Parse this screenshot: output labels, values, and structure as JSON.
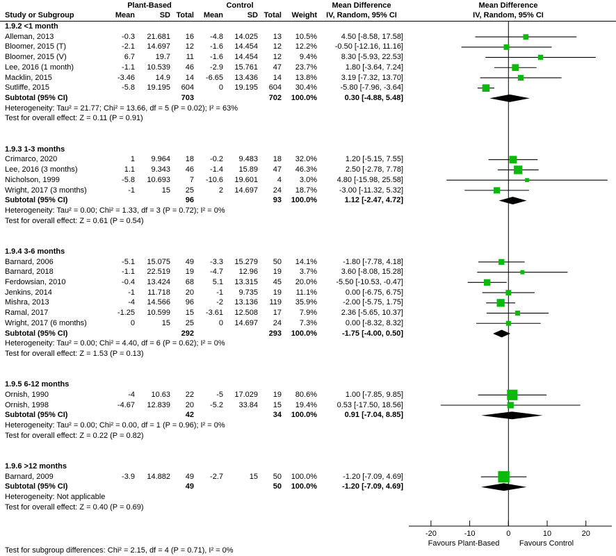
{
  "header": {
    "group1_label": "Plant-Based",
    "group2_label": "Control",
    "md_col_title": "Mean Difference",
    "md_col_sub": "IV, Random, 95% CI",
    "md_plot_title": "Mean Difference",
    "md_plot_sub": "IV, Random, 95% CI",
    "study_col": "Study or Subgroup",
    "mean1": "Mean",
    "sd1": "SD",
    "total1": "Total",
    "mean2": "Mean",
    "sd2": "SD",
    "total2": "Total",
    "weight": "Weight"
  },
  "axis": {
    "ticks": [
      -20,
      -10,
      0,
      10,
      20
    ],
    "favours_left": "Favours Plant-Based",
    "favours_right": "Favours Control"
  },
  "footer": "Test for subgroup differences: Chi² = 2.15, df = 4 (P = 0.71), I² = 0%",
  "colors": {
    "marker": "#0CB80C",
    "diamond": "#000000",
    "line": "#000000"
  },
  "chart_data": {
    "type": "forest",
    "effect_measure": "Mean Difference, IV, Random, 95% CI",
    "xlim": [
      -25,
      25
    ],
    "groups": [
      {
        "name": "1.9.2 <1 month",
        "studies": [
          {
            "label": "Alleman, 2013",
            "mean1": "-0.3",
            "sd1": "21.681",
            "n1": "16",
            "mean2": "-4.8",
            "sd2": "14.025",
            "n2": "13",
            "weight": "10.5%",
            "weight_val": 10.5,
            "ci_text": "4.50 [-8.58, 17.58]",
            "est": 4.5,
            "lo": -8.58,
            "hi": 17.58
          },
          {
            "label": "Bloomer, 2015 (T)",
            "mean1": "-2.1",
            "sd1": "14.697",
            "n1": "12",
            "mean2": "-1.6",
            "sd2": "14.454",
            "n2": "12",
            "weight": "12.2%",
            "weight_val": 12.2,
            "ci_text": "-0.50 [-12.16, 11.16]",
            "est": -0.5,
            "lo": -12.16,
            "hi": 11.16
          },
          {
            "label": "Bloomer, 2015 (V)",
            "mean1": "6.7",
            "sd1": "19.7",
            "n1": "11",
            "mean2": "-1.6",
            "sd2": "14.454",
            "n2": "12",
            "weight": "9.4%",
            "weight_val": 9.4,
            "ci_text": "8.30 [-5.93, 22.53]",
            "est": 8.3,
            "lo": -5.93,
            "hi": 22.53
          },
          {
            "label": "Lee, 2016 (1 month)",
            "mean1": "-1.1",
            "sd1": "10.539",
            "n1": "46",
            "mean2": "-2.9",
            "sd2": "15.761",
            "n2": "47",
            "weight": "23.7%",
            "weight_val": 23.7,
            "ci_text": "1.80 [-3.64, 7.24]",
            "est": 1.8,
            "lo": -3.64,
            "hi": 7.24
          },
          {
            "label": "Macklin, 2015",
            "mean1": "-3.46",
            "sd1": "14.9",
            "n1": "14",
            "mean2": "-6.65",
            "sd2": "13.436",
            "n2": "14",
            "weight": "13.8%",
            "weight_val": 13.8,
            "ci_text": "3.19 [-7.32, 13.70]",
            "est": 3.19,
            "lo": -7.32,
            "hi": 13.7
          },
          {
            "label": "Sutliffe, 2015",
            "mean1": "-5.8",
            "sd1": "19.195",
            "n1": "604",
            "mean2": "0",
            "sd2": "19.195",
            "n2": "604",
            "weight": "30.4%",
            "weight_val": 30.4,
            "ci_text": "-5.80 [-7.96, -3.64]",
            "est": -5.8,
            "lo": -7.96,
            "hi": -3.64
          }
        ],
        "subtotal": {
          "label": "Subtotal (95% CI)",
          "n1": "703",
          "n2": "702",
          "weight": "100.0%",
          "ci_text": "0.30 [-4.88, 5.48]",
          "est": 0.3,
          "lo": -4.88,
          "hi": 5.48
        },
        "heterogeneity": "Heterogeneity: Tau² = 21.77; Chi² = 13.66, df = 5 (P = 0.02); I² = 63%",
        "test": "Test for overall effect: Z = 0.11 (P = 0.91)"
      },
      {
        "name": "1.9.3 1-3 months",
        "studies": [
          {
            "label": "Crimarco, 2020",
            "mean1": "1",
            "sd1": "9.964",
            "n1": "18",
            "mean2": "-0.2",
            "sd2": "9.483",
            "n2": "18",
            "weight": "32.0%",
            "weight_val": 32.0,
            "ci_text": "1.20 [-5.15, 7.55]",
            "est": 1.2,
            "lo": -5.15,
            "hi": 7.55
          },
          {
            "label": "Lee, 2016 (3 months)",
            "mean1": "1.1",
            "sd1": "9.343",
            "n1": "46",
            "mean2": "-1.4",
            "sd2": "15.89",
            "n2": "47",
            "weight": "46.3%",
            "weight_val": 46.3,
            "ci_text": "2.50 [-2.78, 7.78]",
            "est": 2.5,
            "lo": -2.78,
            "hi": 7.78
          },
          {
            "label": "Nicholson, 1999",
            "mean1": "-5.8",
            "sd1": "10.693",
            "n1": "7",
            "mean2": "-10.6",
            "sd2": "19.601",
            "n2": "4",
            "weight": "3.0%",
            "weight_val": 3.0,
            "ci_text": "4.80 [-15.98, 25.58]",
            "est": 4.8,
            "lo": -15.98,
            "hi": 25.58
          },
          {
            "label": "Wright, 2017 (3 months)",
            "mean1": "-1",
            "sd1": "15",
            "n1": "25",
            "mean2": "2",
            "sd2": "14.697",
            "n2": "24",
            "weight": "18.7%",
            "weight_val": 18.7,
            "ci_text": "-3.00 [-11.32, 5.32]",
            "est": -3.0,
            "lo": -11.32,
            "hi": 5.32
          }
        ],
        "subtotal": {
          "label": "Subtotal (95% CI)",
          "n1": "96",
          "n2": "93",
          "weight": "100.0%",
          "ci_text": "1.12 [-2.47, 4.72]",
          "est": 1.12,
          "lo": -2.47,
          "hi": 4.72
        },
        "heterogeneity": "Heterogeneity: Tau² = 0.00; Chi² = 1.33, df = 3 (P = 0.72); I² = 0%",
        "test": "Test for overall effect: Z = 0.61 (P = 0.54)"
      },
      {
        "name": "1.9.4 3-6 months",
        "studies": [
          {
            "label": "Barnard, 2006",
            "mean1": "-5.1",
            "sd1": "15.075",
            "n1": "49",
            "mean2": "-3.3",
            "sd2": "15.279",
            "n2": "50",
            "weight": "14.1%",
            "weight_val": 14.1,
            "ci_text": "-1.80 [-7.78, 4.18]",
            "est": -1.8,
            "lo": -7.78,
            "hi": 4.18
          },
          {
            "label": "Barnard, 2018",
            "mean1": "-1.1",
            "sd1": "22.519",
            "n1": "19",
            "mean2": "-4.7",
            "sd2": "12.96",
            "n2": "19",
            "weight": "3.7%",
            "weight_val": 3.7,
            "ci_text": "3.60 [-8.08, 15.28]",
            "est": 3.6,
            "lo": -8.08,
            "hi": 15.28
          },
          {
            "label": "Ferdowsian, 2010",
            "mean1": "-0.4",
            "sd1": "13.424",
            "n1": "68",
            "mean2": "5.1",
            "sd2": "13.315",
            "n2": "45",
            "weight": "20.0%",
            "weight_val": 20.0,
            "ci_text": "-5.50 [-10.53, -0.47]",
            "est": -5.5,
            "lo": -10.53,
            "hi": -0.47
          },
          {
            "label": "Jenkins, 2014",
            "mean1": "-1",
            "sd1": "11.718",
            "n1": "20",
            "mean2": "-1",
            "sd2": "9.735",
            "n2": "19",
            "weight": "11.1%",
            "weight_val": 11.1,
            "ci_text": "0.00 [-6.75, 6.75]",
            "est": 0.0,
            "lo": -6.75,
            "hi": 6.75
          },
          {
            "label": "Mishra, 2013",
            "mean1": "-4",
            "sd1": "14.566",
            "n1": "96",
            "mean2": "-2",
            "sd2": "13.136",
            "n2": "119",
            "weight": "35.9%",
            "weight_val": 35.9,
            "ci_text": "-2.00 [-5.75, 1.75]",
            "est": -2.0,
            "lo": -5.75,
            "hi": 1.75
          },
          {
            "label": "Ramal, 2017",
            "mean1": "-1.25",
            "sd1": "10.599",
            "n1": "15",
            "mean2": "-3.61",
            "sd2": "12.508",
            "n2": "17",
            "weight": "7.9%",
            "weight_val": 7.9,
            "ci_text": "2.36 [-5.65, 10.37]",
            "est": 2.36,
            "lo": -5.65,
            "hi": 10.37
          },
          {
            "label": "Wright, 2017 (6 months)",
            "mean1": "0",
            "sd1": "15",
            "n1": "25",
            "mean2": "0",
            "sd2": "14.697",
            "n2": "24",
            "weight": "7.3%",
            "weight_val": 7.3,
            "ci_text": "0.00 [-8.32, 8.32]",
            "est": 0.0,
            "lo": -8.32,
            "hi": 8.32
          }
        ],
        "subtotal": {
          "label": "Subtotal (95% CI)",
          "n1": "292",
          "n2": "293",
          "weight": "100.0%",
          "ci_text": "-1.75 [-4.00, 0.50]",
          "est": -1.75,
          "lo": -4.0,
          "hi": 0.5
        },
        "heterogeneity": "Heterogeneity: Tau² = 0.00; Chi² = 4.40, df = 6 (P = 0.62); I² = 0%",
        "test": "Test for overall effect: Z = 1.53 (P = 0.13)"
      },
      {
        "name": "1.9.5 6-12 months",
        "studies": [
          {
            "label": "Ornish, 1990",
            "mean1": "-4",
            "sd1": "10.63",
            "n1": "22",
            "mean2": "-5",
            "sd2": "17.029",
            "n2": "19",
            "weight": "80.6%",
            "weight_val": 80.6,
            "ci_text": "1.00 [-7.85, 9.85]",
            "est": 1.0,
            "lo": -7.85,
            "hi": 9.85
          },
          {
            "label": "Ornish, 1998",
            "mean1": "-4.67",
            "sd1": "12.839",
            "n1": "20",
            "mean2": "-5.2",
            "sd2": "33.84",
            "n2": "15",
            "weight": "19.4%",
            "weight_val": 19.4,
            "ci_text": "0.53 [-17.50, 18.56]",
            "est": 0.53,
            "lo": -17.5,
            "hi": 18.56
          }
        ],
        "subtotal": {
          "label": "Subtotal (95% CI)",
          "n1": "42",
          "n2": "34",
          "weight": "100.0%",
          "ci_text": "0.91 [-7.04, 8.85]",
          "est": 0.91,
          "lo": -7.04,
          "hi": 8.85
        },
        "heterogeneity": "Heterogeneity: Tau² = 0.00; Chi² = 0.00, df = 1 (P = 0.96); I² = 0%",
        "test": "Test for overall effect: Z = 0.22 (P = 0.82)"
      },
      {
        "name": "1.9.6 >12 months",
        "studies": [
          {
            "label": "Barnard, 2009",
            "mean1": "-3.9",
            "sd1": "14.882",
            "n1": "49",
            "mean2": "-2.7",
            "sd2": "15",
            "n2": "50",
            "weight": "100.0%",
            "weight_val": 100.0,
            "ci_text": "-1.20 [-7.09, 4.69]",
            "est": -1.2,
            "lo": -7.09,
            "hi": 4.69
          }
        ],
        "subtotal": {
          "label": "Subtotal (95% CI)",
          "n1": "49",
          "n2": "50",
          "weight": "100.0%",
          "ci_text": "-1.20 [-7.09, 4.69]",
          "est": -1.2,
          "lo": -7.09,
          "hi": 4.69
        },
        "heterogeneity": "Heterogeneity: Not applicable",
        "test": "Test for overall effect: Z = 0.40 (P = 0.69)"
      }
    ]
  }
}
